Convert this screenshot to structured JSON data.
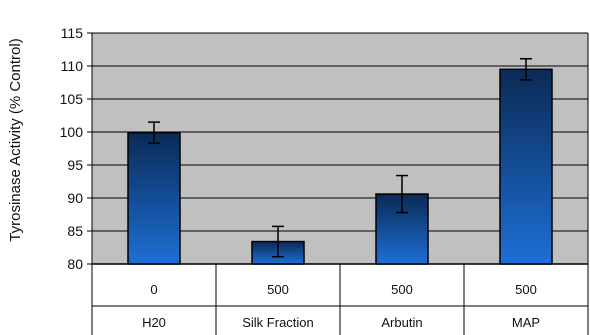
{
  "chart_data": {
    "type": "bar",
    "title": "",
    "ylabel": "Tyrosinase Activity (% Control)",
    "xlabel": "",
    "ylim": [
      80,
      115
    ],
    "yticks": [
      80,
      85,
      90,
      95,
      100,
      105,
      110,
      115
    ],
    "grid": true,
    "categories": [
      "H20",
      "Silk Fraction",
      "Arbutin",
      "MAP"
    ],
    "concentrations": [
      "0",
      "500",
      "500",
      "500"
    ],
    "values": [
      99.9,
      83.4,
      90.6,
      109.5
    ],
    "errors": [
      1.6,
      2.3,
      2.8,
      1.6
    ],
    "colors": {
      "plot_background": "#c0c0c0",
      "bar_top": "#0a2a55",
      "bar_bottom": "#1e6fd6",
      "grid": "#000000"
    }
  }
}
